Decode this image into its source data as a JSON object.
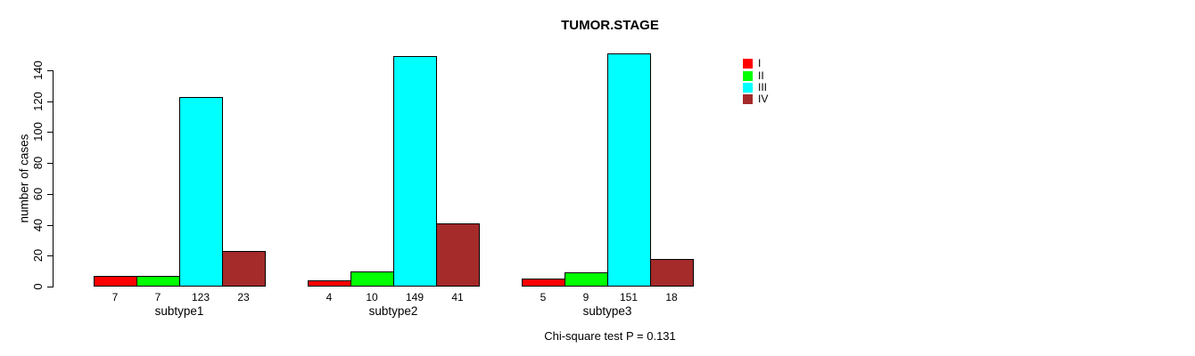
{
  "page": {
    "background_color": "#FFFFFF",
    "text_color": "#000000"
  },
  "chart_data": {
    "type": "bar",
    "title": "TUMOR.STAGE",
    "ylabel": "number of cases",
    "xlabel": "",
    "categories": [
      "subtype1",
      "subtype2",
      "subtype3"
    ],
    "series": [
      {
        "name": "I",
        "color": "#FF0000",
        "values": [
          7,
          4,
          5
        ]
      },
      {
        "name": "II",
        "color": "#00FF00",
        "values": [
          7,
          10,
          9
        ]
      },
      {
        "name": "III",
        "color": "#00FFFF",
        "values": [
          123,
          149,
          151
        ]
      },
      {
        "name": "IV",
        "color": "#A52A2A",
        "values": [
          23,
          41,
          18
        ]
      }
    ],
    "bar_value_labels": [
      [
        "7",
        "7",
        "123",
        "23"
      ],
      [
        "4",
        "10",
        "149",
        "41"
      ],
      [
        "5",
        "9",
        "151",
        "18"
      ]
    ],
    "y_ticks": [
      0,
      20,
      40,
      60,
      80,
      100,
      120,
      140
    ],
    "ylim": [
      0,
      140
    ],
    "grid": false,
    "legend_position": "top-right",
    "legend_entries": [
      "I",
      "II",
      "III",
      "IV"
    ],
    "annotation": "Chi-square test P = 0.131",
    "bar_border_color": "#000000"
  }
}
